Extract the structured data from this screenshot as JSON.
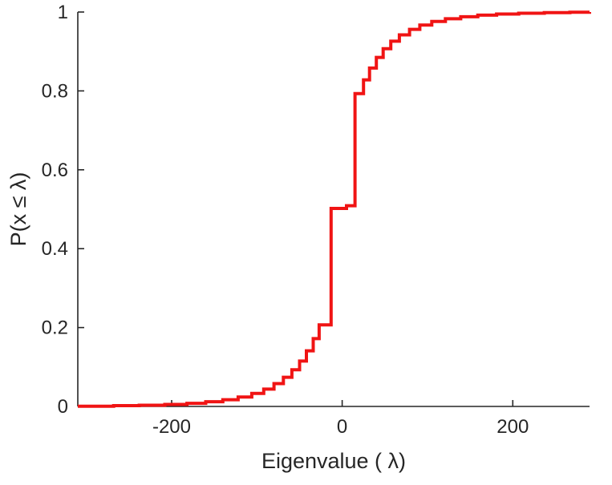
{
  "figure": {
    "background": "#ffffff"
  },
  "chart_data": {
    "type": "line",
    "subtype": "empirical-cdf-stairs",
    "title": "",
    "xlabel": "Eigenvalue ( λ)",
    "ylabel": "P(x ≤ λ)",
    "xlim": [
      -310,
      290
    ],
    "ylim": [
      0,
      1
    ],
    "grid": false,
    "legend": null,
    "axis_color": "#262626",
    "xticks": {
      "values": [
        -200,
        0,
        200
      ],
      "labels": [
        "-200",
        "0",
        "200"
      ]
    },
    "yticks": {
      "values": [
        0,
        0.2,
        0.4,
        0.6,
        0.8,
        1
      ],
      "labels": [
        "0",
        "0.2",
        "0.4",
        "0.6",
        "0.8",
        "1"
      ]
    },
    "series": [
      {
        "name": "eigenvalue-ecdf",
        "color": "#f01414",
        "line_width": 4,
        "points": [
          [
            -310,
            0.0005
          ],
          [
            -268,
            0.002
          ],
          [
            -238,
            0.003
          ],
          [
            -208,
            0.005
          ],
          [
            -182,
            0.008
          ],
          [
            -160,
            0.012
          ],
          [
            -140,
            0.017
          ],
          [
            -122,
            0.024
          ],
          [
            -106,
            0.033
          ],
          [
            -92,
            0.044
          ],
          [
            -80,
            0.058
          ],
          [
            -69,
            0.074
          ],
          [
            -59,
            0.093
          ],
          [
            -50,
            0.115
          ],
          [
            -42,
            0.141
          ],
          [
            -34,
            0.172
          ],
          [
            -27,
            0.207
          ],
          [
            -13,
            0.502
          ],
          [
            5,
            0.509
          ],
          [
            15,
            0.793
          ],
          [
            25,
            0.828
          ],
          [
            32,
            0.858
          ],
          [
            40,
            0.885
          ],
          [
            48,
            0.907
          ],
          [
            57,
            0.926
          ],
          [
            67,
            0.942
          ],
          [
            79,
            0.956
          ],
          [
            91,
            0.967
          ],
          [
            105,
            0.976
          ],
          [
            121,
            0.983
          ],
          [
            139,
            0.988
          ],
          [
            159,
            0.992
          ],
          [
            181,
            0.995
          ],
          [
            207,
            0.997
          ],
          [
            237,
            0.9985
          ],
          [
            267,
            0.9995
          ],
          [
            290,
            1.0
          ]
        ]
      }
    ]
  }
}
